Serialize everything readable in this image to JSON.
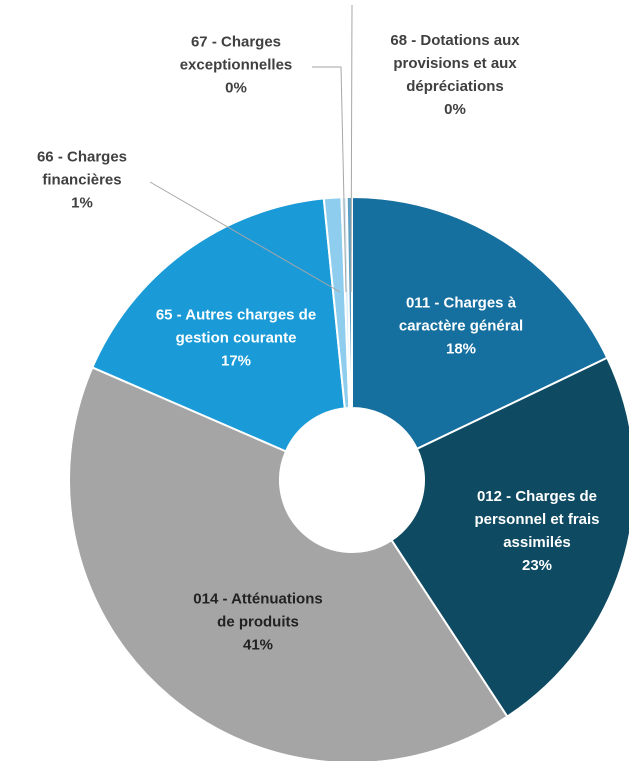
{
  "chart_data": {
    "type": "donut",
    "categories": [
      "011 - Charges à caractère général",
      "012 - Charges de personnel et frais assimilés",
      "014 - Atténuations de produits",
      "65 - Autres charges de gestion courante",
      "66 - Charges financières",
      "67 - Charges exceptionnelles",
      "68 - Dotations aux provisions et aux dépréciations"
    ],
    "values": [
      18,
      23,
      41,
      17,
      1,
      0.3,
      0.3
    ],
    "value_labels": [
      "18%",
      "23%",
      "41%",
      "17%",
      "1%",
      "0%",
      "0%"
    ],
    "colors": [
      "#156f9f",
      "#0e4a61",
      "#a5a5a5",
      "#1a9bd7",
      "#8fcdee",
      "#d4ebf7",
      "#5b9fc2"
    ]
  }
}
